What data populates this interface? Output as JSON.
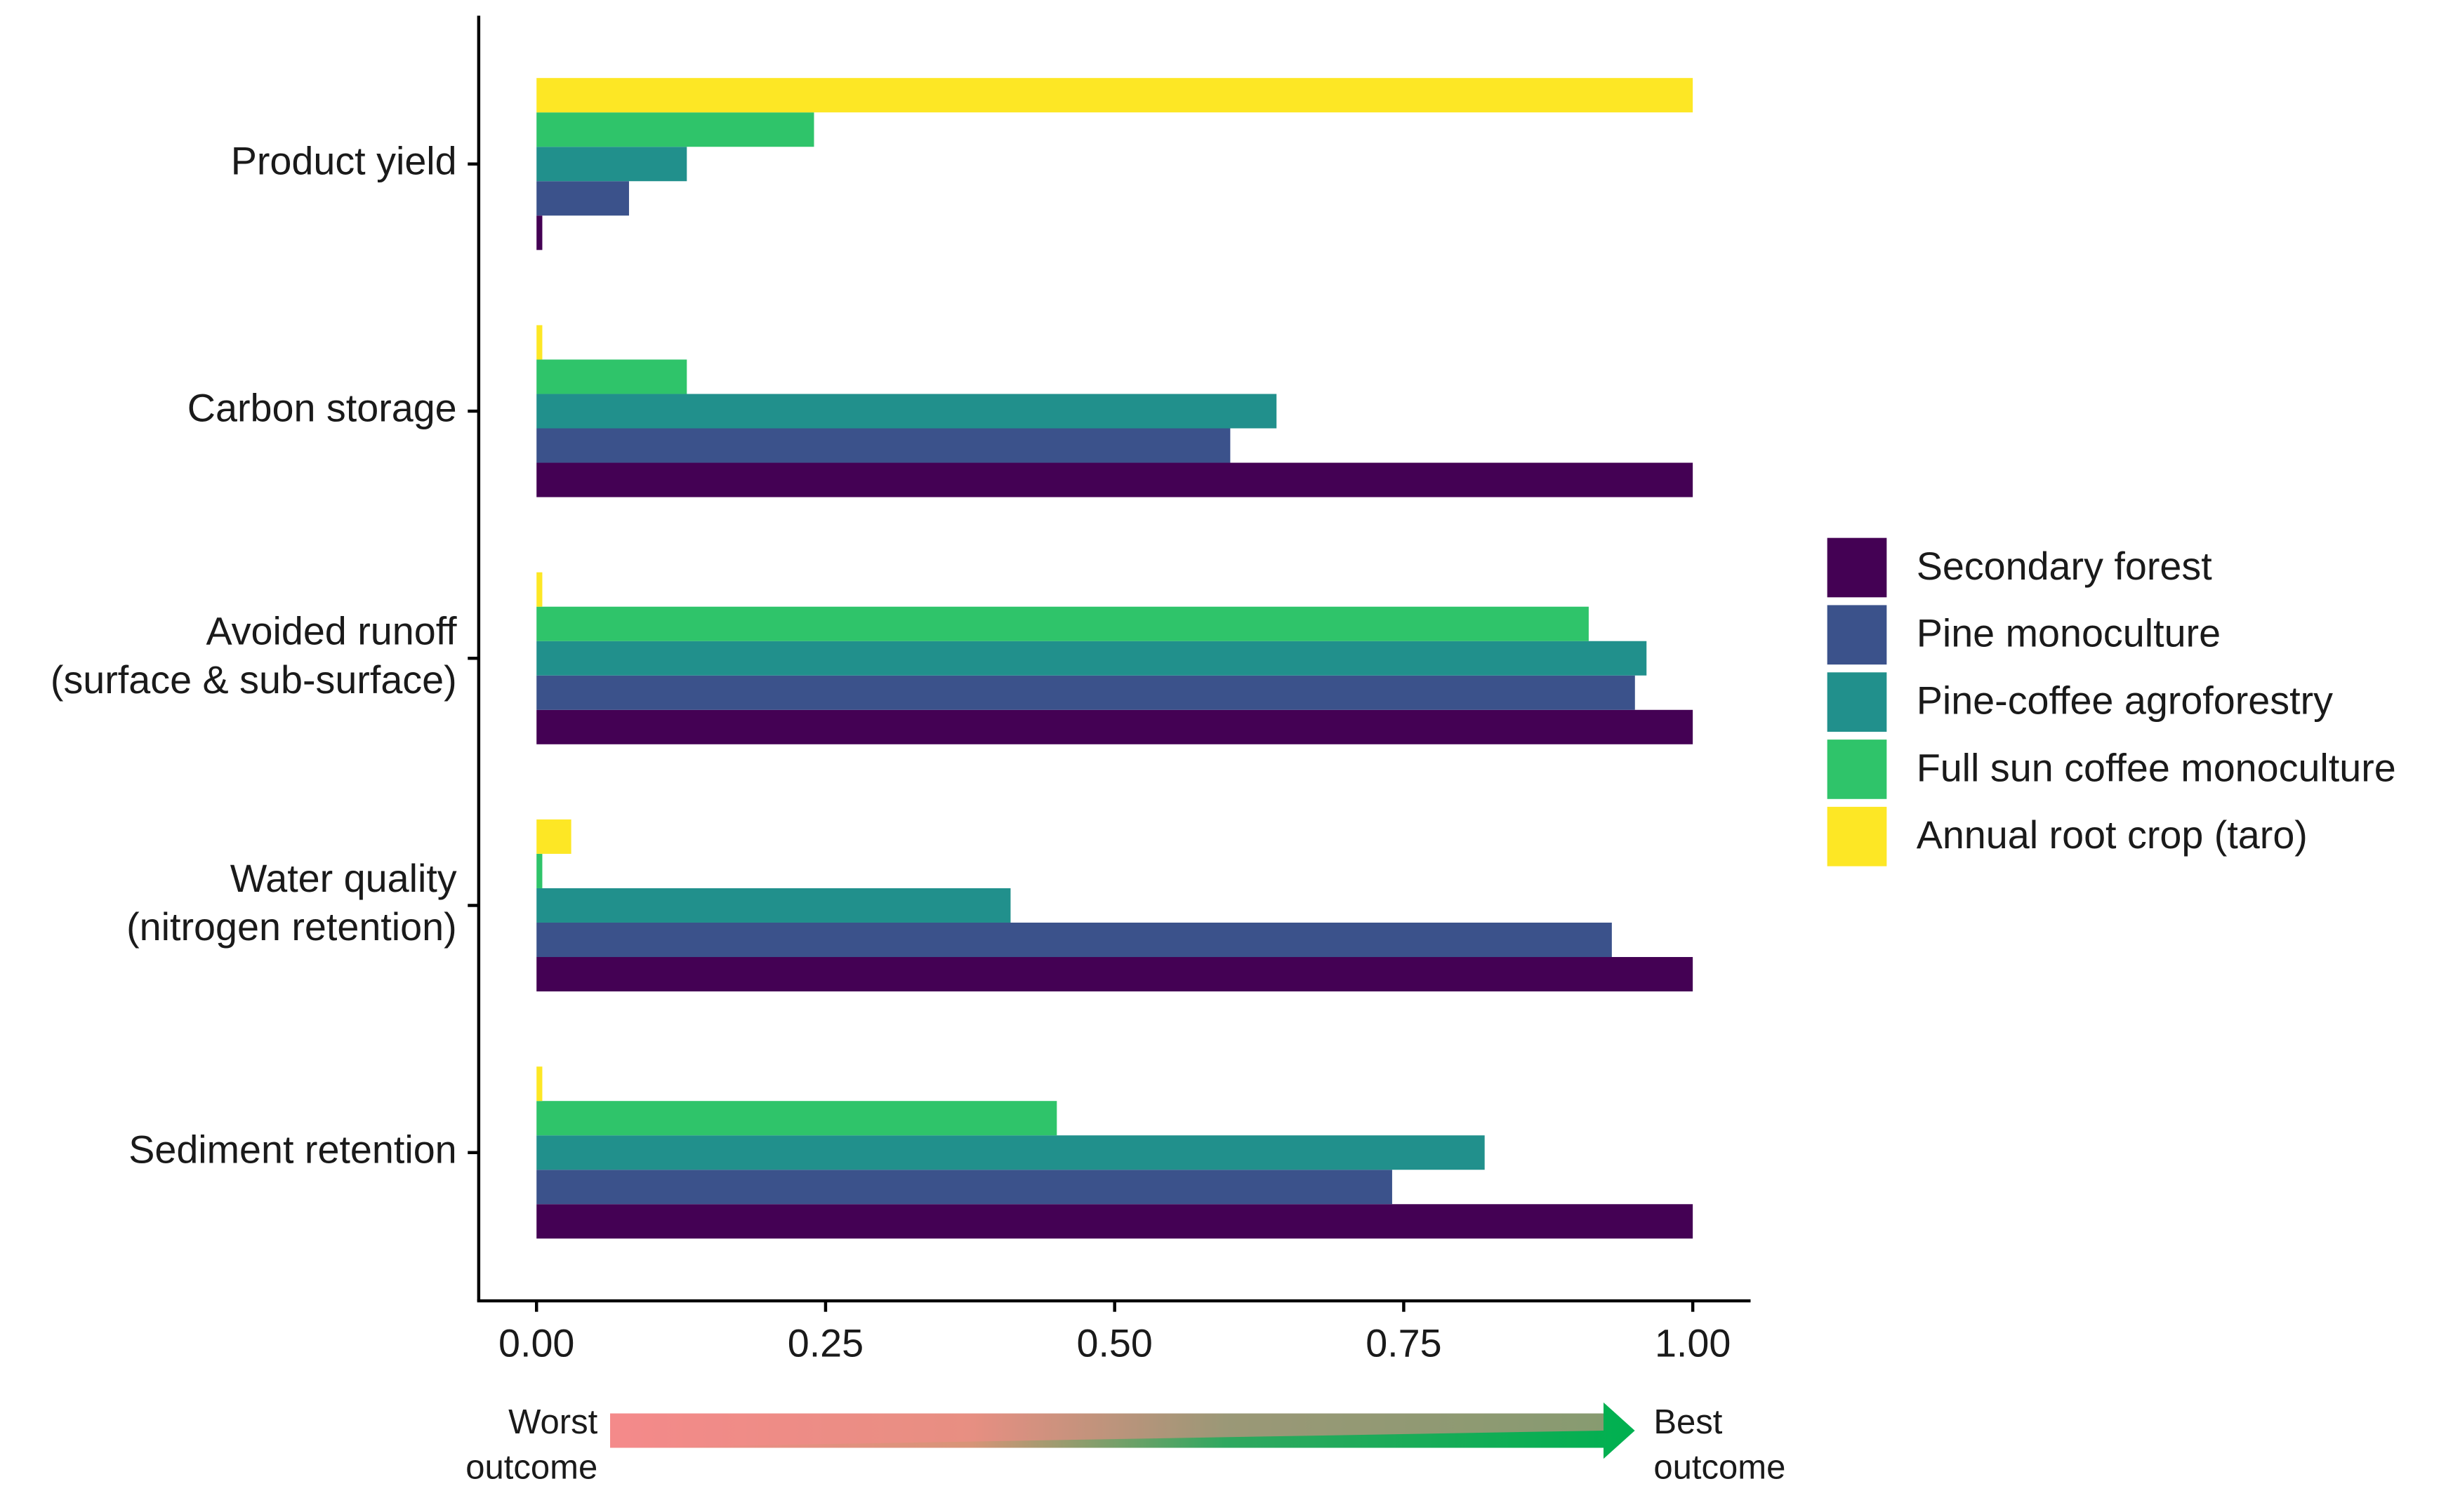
{
  "chart_data": {
    "type": "hbar",
    "categories": [
      "Product yield",
      "Carbon storage",
      "Avoided runoff\n(surface & sub-surface)",
      "Water quality\n(nitrogen retention)",
      "Sediment retention"
    ],
    "series": [
      {
        "name": "Secondary forest",
        "color": "#440154",
        "values": [
          0.005,
          1.0,
          1.0,
          1.0,
          1.0
        ]
      },
      {
        "name": "Pine monoculture",
        "color": "#3b528b",
        "values": [
          0.08,
          0.6,
          0.95,
          0.93,
          0.74
        ]
      },
      {
        "name": "Pine-coffee agroforestry",
        "color": "#21908c",
        "values": [
          0.13,
          0.64,
          0.96,
          0.41,
          0.82
        ]
      },
      {
        "name": "Full sun coffee monoculture",
        "color": "#2fc46a",
        "values": [
          0.24,
          0.13,
          0.91,
          0.005,
          0.45
        ]
      },
      {
        "name": "Annual root crop (taro)",
        "color": "#fde725",
        "values": [
          1.0,
          0.005,
          0.005,
          0.03,
          0.005
        ]
      }
    ],
    "xlim": [
      -0.05,
      1.05
    ],
    "xticks": [
      {
        "value": 0,
        "label": "0.00"
      },
      {
        "value": 0.25,
        "label": "0.25"
      },
      {
        "value": 0.5,
        "label": "0.50"
      },
      {
        "value": 0.75,
        "label": "0.75"
      },
      {
        "value": 1,
        "label": "1.00"
      }
    ],
    "legend": "right",
    "annotations": [
      "Worst\noutcome",
      "Best\noutcome"
    ]
  }
}
